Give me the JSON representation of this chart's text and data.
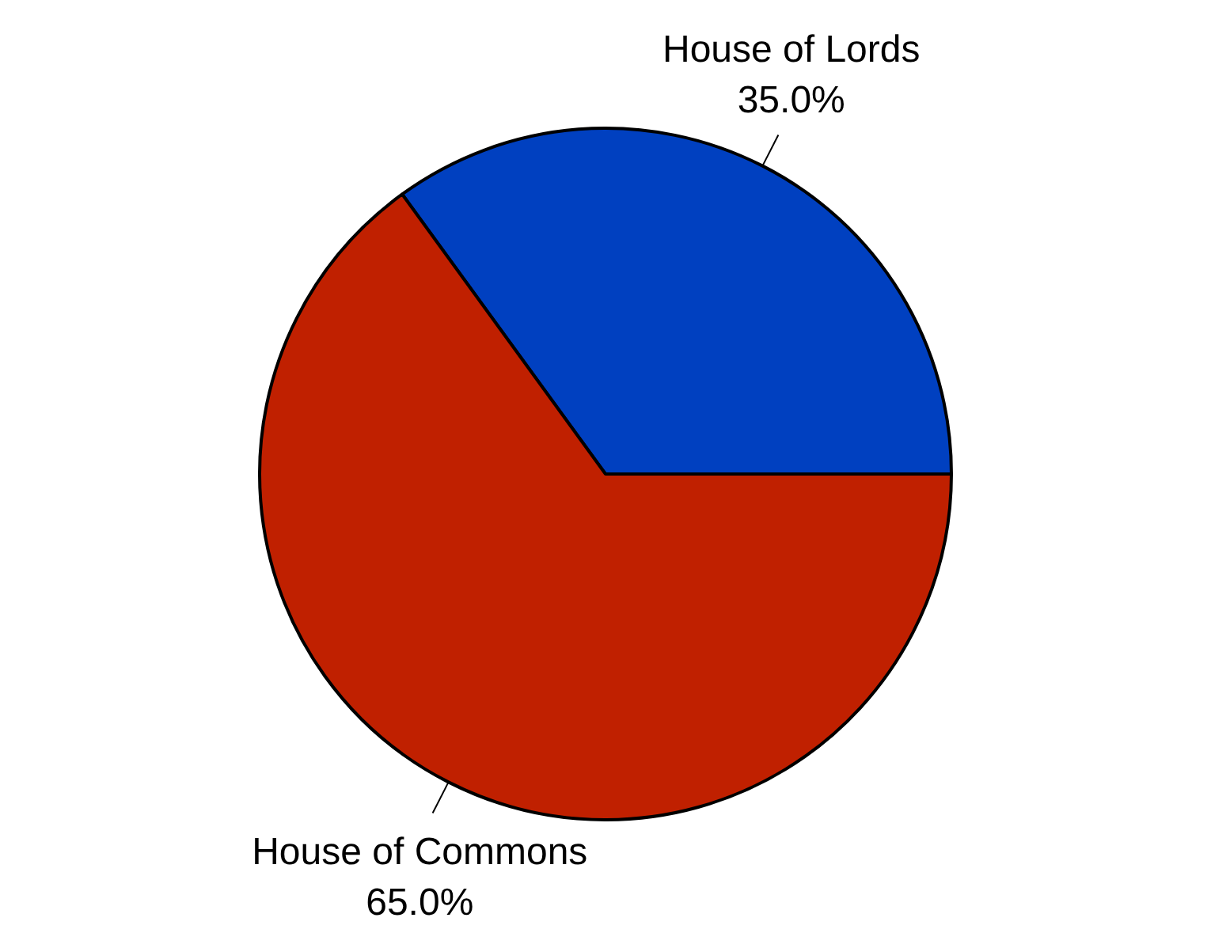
{
  "chart_data": {
    "type": "pie",
    "categories": [
      "House of Lords",
      "House of Commons"
    ],
    "values": [
      35,
      65
    ],
    "colors": [
      "#0040c0",
      "#c02000"
    ],
    "value_labels": [
      "35.0%",
      "65.0%"
    ],
    "legend": false
  }
}
